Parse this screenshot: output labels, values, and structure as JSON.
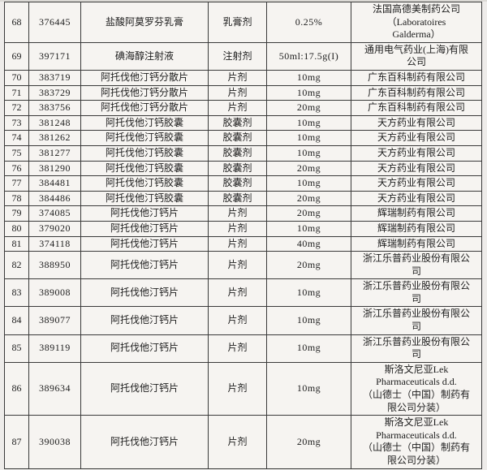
{
  "page": {
    "type": "scanned-table-document",
    "background_color": "#dcdad6",
    "paper_color": "#f6f4f1",
    "border_color": "#3a3a3a",
    "text_color": "#1d1d1d"
  },
  "table": {
    "rows": [
      {
        "no": "68",
        "acceptance_no": "376445",
        "drug_name": "盐酸阿莫罗芬乳膏",
        "dosage_form": "乳膏剂",
        "spec": "0.25%",
        "manufacturer": "法国高德美制药公司\n（Laboratoires\nGalderma）"
      },
      {
        "no": "69",
        "acceptance_no": "397171",
        "drug_name": "碘海醇注射液",
        "dosage_form": "注射剂",
        "spec": "50ml:17.5g(I)",
        "manufacturer": "通用电气药业(上海)有限\n公司"
      },
      {
        "no": "70",
        "acceptance_no": "383719",
        "drug_name": "阿托伐他汀钙分散片",
        "dosage_form": "片剂",
        "spec": "10mg",
        "manufacturer": "广东百科制药有限公司"
      },
      {
        "no": "71",
        "acceptance_no": "383729",
        "drug_name": "阿托伐他汀钙分散片",
        "dosage_form": "片剂",
        "spec": "10mg",
        "manufacturer": "广东百科制药有限公司"
      },
      {
        "no": "72",
        "acceptance_no": "383756",
        "drug_name": "阿托伐他汀钙分散片",
        "dosage_form": "片剂",
        "spec": "20mg",
        "manufacturer": "广东百科制药有限公司"
      },
      {
        "no": "73",
        "acceptance_no": "381248",
        "drug_name": "阿托伐他汀钙胶囊",
        "dosage_form": "胶囊剂",
        "spec": "10mg",
        "manufacturer": "天方药业有限公司"
      },
      {
        "no": "74",
        "acceptance_no": "381262",
        "drug_name": "阿托伐他汀钙胶囊",
        "dosage_form": "胶囊剂",
        "spec": "10mg",
        "manufacturer": "天方药业有限公司"
      },
      {
        "no": "75",
        "acceptance_no": "381277",
        "drug_name": "阿托伐他汀钙胶囊",
        "dosage_form": "胶囊剂",
        "spec": "10mg",
        "manufacturer": "天方药业有限公司"
      },
      {
        "no": "76",
        "acceptance_no": "381290",
        "drug_name": "阿托伐他汀钙胶囊",
        "dosage_form": "胶囊剂",
        "spec": "20mg",
        "manufacturer": "天方药业有限公司"
      },
      {
        "no": "77",
        "acceptance_no": "384481",
        "drug_name": "阿托伐他汀钙胶囊",
        "dosage_form": "胶囊剂",
        "spec": "10mg",
        "manufacturer": "天方药业有限公司"
      },
      {
        "no": "78",
        "acceptance_no": "384486",
        "drug_name": "阿托伐他汀钙胶囊",
        "dosage_form": "胶囊剂",
        "spec": "20mg",
        "manufacturer": "天方药业有限公司"
      },
      {
        "no": "79",
        "acceptance_no": "374085",
        "drug_name": "阿托伐他汀钙片",
        "dosage_form": "片剂",
        "spec": "20mg",
        "manufacturer": "辉瑞制药有限公司"
      },
      {
        "no": "80",
        "acceptance_no": "379020",
        "drug_name": "阿托伐他汀钙片",
        "dosage_form": "片剂",
        "spec": "10mg",
        "manufacturer": "辉瑞制药有限公司"
      },
      {
        "no": "81",
        "acceptance_no": "374118",
        "drug_name": "阿托伐他汀钙片",
        "dosage_form": "片剂",
        "spec": "40mg",
        "manufacturer": "辉瑞制药有限公司"
      },
      {
        "no": "82",
        "acceptance_no": "388950",
        "drug_name": "阿托伐他汀钙片",
        "dosage_form": "片剂",
        "spec": "20mg",
        "manufacturer": "浙江乐普药业股份有限公\n司"
      },
      {
        "no": "83",
        "acceptance_no": "389008",
        "drug_name": "阿托伐他汀钙片",
        "dosage_form": "片剂",
        "spec": "10mg",
        "manufacturer": "浙江乐普药业股份有限公\n司"
      },
      {
        "no": "84",
        "acceptance_no": "389077",
        "drug_name": "阿托伐他汀钙片",
        "dosage_form": "片剂",
        "spec": "10mg",
        "manufacturer": "浙江乐普药业股份有限公\n司"
      },
      {
        "no": "85",
        "acceptance_no": "389119",
        "drug_name": "阿托伐他汀钙片",
        "dosage_form": "片剂",
        "spec": "10mg",
        "manufacturer": "浙江乐普药业股份有限公\n司"
      },
      {
        "no": "86",
        "acceptance_no": "389634",
        "drug_name": "阿托伐他汀钙片",
        "dosage_form": "片剂",
        "spec": "10mg",
        "manufacturer": "斯洛文尼亚Lek\nPharmaceuticals d.d.\n（山德士（中国）制药有\n限公司分装）"
      },
      {
        "no": "87",
        "acceptance_no": "390038",
        "drug_name": "阿托伐他汀钙片",
        "dosage_form": "片剂",
        "spec": "20mg",
        "manufacturer": "斯洛文尼亚Lek\nPharmaceuticals d.d.\n（山德士（中国）制药有\n限公司分装）"
      }
    ]
  }
}
